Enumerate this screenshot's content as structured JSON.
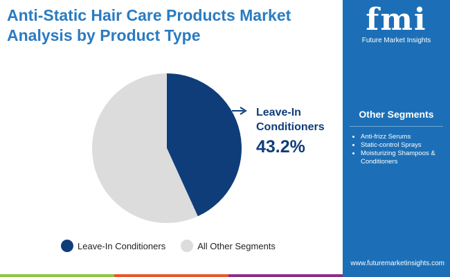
{
  "title": "Anti-Static Hair Care Products Market Analysis by Product Type",
  "logo": {
    "text": "fmi",
    "subtitle": "Future Market Insights"
  },
  "side": {
    "title": "Other Segments",
    "items": [
      "Anti-frizz Serums",
      "Static-control Sprays",
      "Moisturizing Shampoos & Conditioners"
    ],
    "url": "www.futuremarketinsights.com"
  },
  "chart_data": {
    "type": "pie",
    "title": "Anti-Static Hair Care Products Market Analysis by Product Type",
    "slices": [
      {
        "label": "Leave-In Conditioners",
        "value": 43.2,
        "color": "#0f3d7a"
      },
      {
        "label": "All Other Segments",
        "value": 56.8,
        "color": "#dcdcdc"
      }
    ],
    "annotation": {
      "label": "Leave-In Conditioners",
      "value_text": "43.2%"
    },
    "legend": "bottom"
  }
}
